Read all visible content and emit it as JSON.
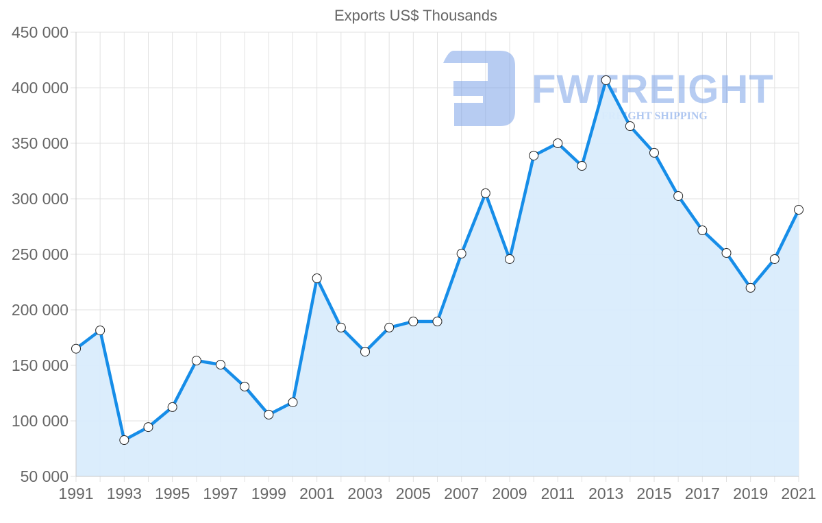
{
  "chart_data": {
    "type": "line",
    "title": "Exports US$ Thousands",
    "xlabel": "",
    "ylabel": "",
    "x": [
      1991,
      1992,
      1993,
      1994,
      1995,
      1996,
      1997,
      1998,
      1999,
      2000,
      2001,
      2002,
      2003,
      2004,
      2005,
      2006,
      2007,
      2008,
      2009,
      2010,
      2011,
      2012,
      2013,
      2014,
      2015,
      2016,
      2017,
      2018,
      2019,
      2020,
      2021
    ],
    "series": [
      {
        "name": "Exports US$ Thousands",
        "values": [
          165000,
          181500,
          82700,
          94400,
          112400,
          154300,
          150600,
          130900,
          105600,
          116700,
          228400,
          184000,
          162300,
          184000,
          189500,
          189500,
          250600,
          305000,
          245700,
          338900,
          350000,
          329600,
          406800,
          365400,
          341400,
          302500,
          271600,
          251200,
          219800,
          245700,
          290100
        ],
        "line_color": "#168de8",
        "fill_color": "#d9ecfc",
        "point_fill": "#ffffff",
        "point_stroke": "#222222"
      }
    ],
    "x_tick_labels": [
      "1991",
      "1993",
      "1995",
      "1997",
      "1999",
      "2001",
      "2003",
      "2005",
      "2007",
      "2009",
      "2011",
      "2013",
      "2015",
      "2017",
      "2019",
      "2021"
    ],
    "y_tick_labels": [
      "450 000",
      "400 000",
      "350 000",
      "300 000",
      "250 000",
      "200 000",
      "150 000",
      "100 000",
      "50 000"
    ],
    "y_ticks": [
      450000,
      400000,
      350000,
      300000,
      250000,
      200000,
      150000,
      100000,
      50000
    ],
    "ylim": [
      50000,
      450000
    ],
    "xlim": [
      1991,
      2021
    ],
    "grid": true,
    "legend": "none"
  },
  "watermark": {
    "brand": "FWFREIGHT",
    "tagline": "FREIGHT SHIPPING",
    "color": "#6f9ae6"
  }
}
